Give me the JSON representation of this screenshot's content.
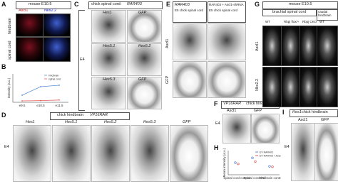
{
  "panels": {
    "a": {
      "label": "A",
      "title": "mouse E10.5",
      "columns": [
        "Ascl1",
        "Nkx2.2"
      ],
      "rows": [
        "hindbrain",
        "spinal cord"
      ]
    },
    "b": {
      "label": "B",
      "chart": {
        "type": "line",
        "x": [
          "e9.5",
          "e10.5",
          "e11.5"
        ],
        "y_label": "Intensity (a.u.)",
        "ylim": [
          0,
          1
        ],
        "series": [
          {
            "name": "hindbrain",
            "color": "#5b8fd6",
            "values": [
              0.25,
              0.55,
              0.6
            ]
          },
          {
            "name": "spinal cord",
            "color": "#e06060",
            "values": [
              0.05,
              0.06,
              0.08
            ]
          }
        ]
      }
    },
    "c": {
      "label": "C",
      "title": "chick spinal cord:",
      "construct": "RAR403",
      "stage": "E4",
      "images": [
        "Hes1",
        "GFP",
        "Hes5.1",
        "Hes5.2",
        "Hes5.3",
        "GFP"
      ]
    },
    "d": {
      "label": "D",
      "title": "chick hindbrain:",
      "construct": "VP16RAR",
      "stage": "E4",
      "images": [
        "Hes1",
        "Hes5.1",
        "Hes5.2",
        "Hes5.3",
        "GFP"
      ]
    },
    "e": {
      "label": "E",
      "columns": [
        {
          "construct": "RAR403",
          "tissue": "E5 chick spinal cord"
        },
        {
          "construct": "RAR403 + Ascl1-shRNA",
          "tissue": "E5 chick spinal cord"
        }
      ],
      "rows": [
        "Ascl1",
        "GFP"
      ]
    },
    "f": {
      "label": "F",
      "construct": "VP16RAR",
      "tissue": "chick hindbrain",
      "stage": "E4",
      "images": [
        "Ascl1",
        "GFP"
      ]
    },
    "g": {
      "label": "G",
      "title": "mouse E10.5",
      "region1": "brachial spinal cord",
      "region2": "caudal hindbrain",
      "columns": [
        "WT",
        "Rbpj flox/+",
        "Rbpj CKO",
        "WT"
      ],
      "rows": [
        "Ascl1",
        "Nkx2.2"
      ]
    },
    "h": {
      "label": "H",
      "chart": {
        "type": "scatter",
        "categories": [
          "Spinal cord control",
          "Spinal cord E5",
          "Hindbrain control"
        ],
        "y_label": "Mean intensity (a.u.)",
        "ylim": [
          0,
          1
        ],
        "series": [
          {
            "name": "EV RAR403",
            "color": "#3a6fd0",
            "values": [
              0.5,
              0.7,
              0.35
            ]
          },
          {
            "name": "EV RAR403 + Ascl1-shRNA",
            "color": "#d04040",
            "values": [
              0.45,
              0.55,
              0.33
            ]
          }
        ]
      }
    },
    "i": {
      "label": "I",
      "construct": "Hes1",
      "tissue": "chick hindbrain",
      "stage": "E4",
      "images": [
        "Ascl1",
        "GFP"
      ]
    }
  }
}
